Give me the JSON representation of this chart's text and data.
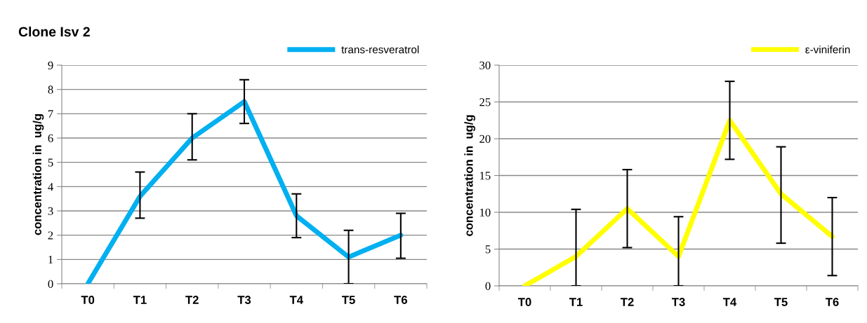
{
  "chart_data": [
    {
      "type": "line",
      "title": "Clone Isv 2",
      "ylabel": "concentration in  ug/g",
      "categories": [
        "T0",
        "T1",
        "T2",
        "T3",
        "T4",
        "T5",
        "T6"
      ],
      "ylim": [
        0,
        9
      ],
      "yticks": [
        0,
        1,
        2,
        3,
        4,
        5,
        6,
        7,
        8,
        9
      ],
      "grid": "y",
      "legend": "top right",
      "marker": "none",
      "series": [
        {
          "name": "trans-resveratrol",
          "color": "#00b0f0",
          "values": [
            0,
            3.6,
            6.0,
            7.5,
            2.8,
            1.1,
            2.0
          ],
          "errors": [
            null,
            [
              2.7,
              4.6
            ],
            [
              5.1,
              7.0
            ],
            [
              6.6,
              8.4
            ],
            [
              1.9,
              3.7
            ],
            [
              0,
              2.2
            ],
            [
              1.05,
              2.9
            ]
          ]
        }
      ]
    },
    {
      "type": "line",
      "ylabel": "concentration in  ug/g",
      "categories": [
        "T0",
        "T1",
        "T2",
        "T3",
        "T4",
        "T5",
        "T6"
      ],
      "ylim": [
        0,
        30
      ],
      "yticks": [
        0,
        5,
        10,
        15,
        20,
        25,
        30
      ],
      "grid": "y",
      "legend": "top right",
      "marker": "none",
      "series": [
        {
          "name": "ε-viniferin",
          "color": "#ffff00",
          "values": [
            0,
            4.0,
            10.5,
            4.0,
            22.5,
            12.5,
            6.7
          ],
          "errors": [
            null,
            [
              0,
              10.4
            ],
            [
              5.2,
              15.8
            ],
            [
              0,
              9.4
            ],
            [
              17.2,
              27.8
            ],
            [
              5.8,
              18.9
            ],
            [
              1.4,
              12.0
            ]
          ]
        }
      ]
    }
  ]
}
